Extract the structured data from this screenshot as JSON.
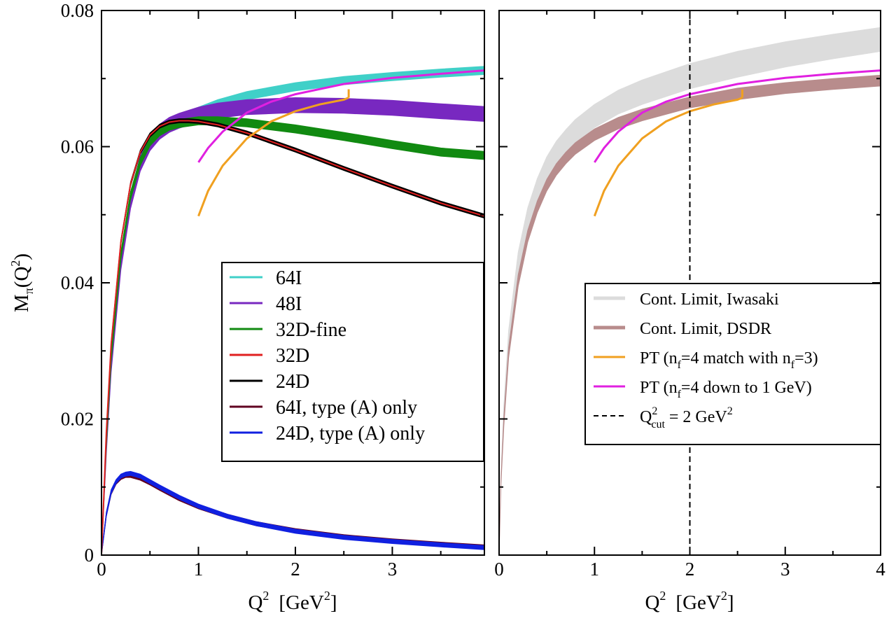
{
  "chart_data": [
    {
      "type": "line",
      "panel": "left",
      "xlabel": "Q",
      "xlabel_sup": "2",
      "xlabel_unit_main": "[GeV",
      "xlabel_unit_sup": "2",
      "xlabel_unit_end": "]",
      "ylabel_main": "M",
      "ylabel_sub": "π",
      "ylabel_arg": "(Q",
      "ylabel_arg_sup": "2",
      "ylabel_arg_end": ")",
      "xlim": [
        0,
        3.95
      ],
      "ylim": [
        0,
        0.08
      ],
      "x_ticks": [
        0,
        1,
        2,
        3
      ],
      "x_tick_labels": [
        "0",
        "1",
        "2",
        "3"
      ],
      "y_ticks": [
        0,
        0.02,
        0.04,
        0.06,
        0.08
      ],
      "y_tick_labels": [
        "0",
        "0.02",
        "0.04",
        "0.06",
        "0.08"
      ],
      "legend_position": "center-right",
      "series": [
        {
          "name": "64I",
          "color": "#40d0c8",
          "band": true,
          "x": [
            0,
            0.05,
            0.1,
            0.2,
            0.3,
            0.4,
            0.5,
            0.6,
            0.7,
            0.8,
            1.0,
            1.2,
            1.5,
            2.0,
            2.5,
            3.0,
            3.5,
            3.95
          ],
          "y": [
            0,
            0.016,
            0.028,
            0.043,
            0.052,
            0.0575,
            0.0605,
            0.0622,
            0.0632,
            0.0638,
            0.0652,
            0.0663,
            0.0675,
            0.0688,
            0.0697,
            0.0703,
            0.0708,
            0.0712
          ],
          "width": 0.0012
        },
        {
          "name": "48I",
          "color": "#7828c0",
          "band": true,
          "x": [
            0,
            0.05,
            0.1,
            0.2,
            0.3,
            0.4,
            0.5,
            0.6,
            0.7,
            0.8,
            1.0,
            1.2,
            1.5,
            2.0,
            2.5,
            3.0,
            3.5,
            3.95
          ],
          "y": [
            0,
            0.016,
            0.028,
            0.043,
            0.052,
            0.0575,
            0.0605,
            0.0622,
            0.0632,
            0.0638,
            0.0647,
            0.0653,
            0.0658,
            0.0661,
            0.066,
            0.0657,
            0.0652,
            0.0648
          ],
          "width": 0.0022
        },
        {
          "name": "32D-fine",
          "color": "#118a11",
          "band": true,
          "x": [
            0,
            0.05,
            0.1,
            0.2,
            0.3,
            0.4,
            0.5,
            0.6,
            0.7,
            0.8,
            1.0,
            1.2,
            1.5,
            2.0,
            2.5,
            3.0,
            3.5,
            3.95
          ],
          "y": [
            0,
            0.0165,
            0.029,
            0.044,
            0.0528,
            0.0578,
            0.0607,
            0.0622,
            0.063,
            0.0634,
            0.0638,
            0.0638,
            0.0635,
            0.0626,
            0.0615,
            0.0603,
            0.0592,
            0.0587
          ],
          "width": 0.0012
        },
        {
          "name": "32D",
          "color": "#e02020",
          "band": false,
          "x": [
            0,
            0.05,
            0.1,
            0.2,
            0.3,
            0.4,
            0.5,
            0.6,
            0.7,
            0.8,
            0.9,
            1.0,
            1.2,
            1.5,
            2.0,
            2.5,
            3.0,
            3.5,
            3.95
          ],
          "y": [
            0,
            0.018,
            0.031,
            0.046,
            0.0545,
            0.0592,
            0.0617,
            0.063,
            0.0636,
            0.0638,
            0.0638,
            0.0637,
            0.0632,
            0.062,
            0.0595,
            0.0568,
            0.0542,
            0.0517,
            0.0498
          ]
        },
        {
          "name": "24D",
          "color": "#000000",
          "band": true,
          "x": [
            0,
            0.05,
            0.1,
            0.2,
            0.3,
            0.4,
            0.5,
            0.6,
            0.7,
            0.8,
            0.9,
            1.0,
            1.2,
            1.5,
            2.0,
            2.5,
            3.0,
            3.5,
            3.95
          ],
          "y": [
            0,
            0.018,
            0.031,
            0.046,
            0.0545,
            0.0592,
            0.0617,
            0.063,
            0.0636,
            0.0638,
            0.0638,
            0.0637,
            0.0632,
            0.062,
            0.0595,
            0.0568,
            0.0542,
            0.0517,
            0.0498
          ],
          "width": 0.0006
        },
        {
          "name": "64I, type (A) only",
          "color": "#600020",
          "band": true,
          "x": [
            0,
            0.05,
            0.1,
            0.15,
            0.2,
            0.25,
            0.3,
            0.4,
            0.5,
            0.6,
            0.8,
            1.0,
            1.3,
            1.6,
            2.0,
            2.5,
            3.0,
            3.5,
            3.95
          ],
          "y": [
            0,
            0.006,
            0.0092,
            0.0107,
            0.0114,
            0.0117,
            0.0117,
            0.0113,
            0.0106,
            0.0098,
            0.0083,
            0.0071,
            0.0057,
            0.0046,
            0.0036,
            0.0027,
            0.0021,
            0.0016,
            0.0012
          ],
          "width": 0.0006
        },
        {
          "name": "24D, type (A) only",
          "color": "#1020e0",
          "band": true,
          "x": [
            0,
            0.05,
            0.1,
            0.15,
            0.2,
            0.25,
            0.3,
            0.4,
            0.5,
            0.6,
            0.8,
            1.0,
            1.3,
            1.6,
            2.0,
            2.5,
            3.0,
            3.5,
            3.95
          ],
          "y": [
            0,
            0.006,
            0.0093,
            0.0108,
            0.0116,
            0.0119,
            0.012,
            0.0116,
            0.0108,
            0.01,
            0.0085,
            0.0072,
            0.0057,
            0.0046,
            0.0035,
            0.0026,
            0.002,
            0.0015,
            0.0011
          ],
          "width": 0.0006
        }
      ],
      "overlays": [
        {
          "color": "#f0a020",
          "x": [
            1.0,
            1.1,
            1.25,
            1.5,
            1.75,
            2.0,
            2.25,
            2.5,
            2.55
          ],
          "y": [
            0.0498,
            0.0535,
            0.0572,
            0.0612,
            0.0637,
            0.0652,
            0.0662,
            0.0669,
            0.0672
          ],
          "tick_at": 2.55
        },
        {
          "color": "#e020e0",
          "x": [
            1.0,
            1.1,
            1.25,
            1.5,
            1.75,
            2.0,
            2.5,
            3.0,
            3.5,
            3.95
          ],
          "y": [
            0.0577,
            0.0598,
            0.0622,
            0.065,
            0.0666,
            0.0677,
            0.0692,
            0.0701,
            0.0707,
            0.0712
          ]
        }
      ]
    },
    {
      "type": "line",
      "panel": "right",
      "xlabel": "Q",
      "xlabel_sup": "2",
      "xlabel_unit_main": "[GeV",
      "xlabel_unit_sup": "2",
      "xlabel_unit_end": "]",
      "xlim": [
        0,
        4
      ],
      "ylim": [
        0,
        0.08
      ],
      "x_ticks": [
        0,
        1,
        2,
        3,
        4
      ],
      "x_tick_labels": [
        "0",
        "1",
        "2",
        "3",
        "4"
      ],
      "legend_position": "center-right",
      "vline": {
        "x": 2,
        "style": "dashed",
        "color": "#000000"
      },
      "series": [
        {
          "name": "Cont. Limit, Iwasaki",
          "color": "#dcdcdc",
          "band": true,
          "x": [
            0,
            0.02,
            0.05,
            0.1,
            0.2,
            0.3,
            0.4,
            0.5,
            0.6,
            0.7,
            0.8,
            1.0,
            1.25,
            1.5,
            2.0,
            2.5,
            3.0,
            3.5,
            4.0
          ],
          "y_low": [
            0,
            0.011,
            0.02,
            0.03,
            0.041,
            0.0475,
            0.0518,
            0.055,
            0.0573,
            0.059,
            0.0605,
            0.0628,
            0.0648,
            0.0662,
            0.0685,
            0.0702,
            0.0717,
            0.0729,
            0.074
          ],
          "y_high": [
            0,
            0.012,
            0.022,
            0.033,
            0.0445,
            0.051,
            0.0553,
            0.0585,
            0.0608,
            0.0625,
            0.064,
            0.0662,
            0.0683,
            0.0698,
            0.0722,
            0.074,
            0.0754,
            0.0765,
            0.0775
          ]
        },
        {
          "name": "Cont. Limit, DSDR",
          "color": "#b88c8c",
          "band": true,
          "x": [
            0,
            0.02,
            0.05,
            0.1,
            0.2,
            0.3,
            0.4,
            0.5,
            0.6,
            0.7,
            0.8,
            1.0,
            1.25,
            1.5,
            2.0,
            2.5,
            3.0,
            3.5,
            4.0
          ],
          "y_low": [
            0,
            0.0105,
            0.019,
            0.029,
            0.0395,
            0.046,
            0.0503,
            0.0535,
            0.0558,
            0.0575,
            0.0589,
            0.0609,
            0.0626,
            0.0638,
            0.0657,
            0.0669,
            0.0678,
            0.0684,
            0.0689
          ],
          "y_high": [
            0,
            0.0112,
            0.0203,
            0.0305,
            0.0412,
            0.0477,
            0.052,
            0.0552,
            0.0575,
            0.0592,
            0.0606,
            0.0626,
            0.0643,
            0.0655,
            0.0673,
            0.0686,
            0.0694,
            0.07,
            0.0705
          ]
        },
        {
          "name": "PT (n",
          "name_sub": "f",
          "name_mid": "=4 match with n",
          "name_sub2": "f",
          "name_end": "=3)",
          "color": "#f0a020",
          "band": false,
          "x": [
            1.0,
            1.1,
            1.25,
            1.5,
            1.75,
            2.0,
            2.25,
            2.5,
            2.55
          ],
          "y": [
            0.0498,
            0.0535,
            0.0572,
            0.0612,
            0.0637,
            0.0652,
            0.0662,
            0.0669,
            0.0672
          ],
          "tick_at": 2.55
        },
        {
          "name": "PT (n",
          "name_sub": "f",
          "name_mid": "=4 down to 1 GeV)",
          "color": "#e020e0",
          "band": false,
          "x": [
            1.0,
            1.1,
            1.25,
            1.5,
            1.75,
            2.0,
            2.5,
            3.0,
            3.5,
            4.0
          ],
          "y": [
            0.0577,
            0.0598,
            0.0622,
            0.065,
            0.0666,
            0.0677,
            0.0692,
            0.0701,
            0.0707,
            0.0712
          ]
        },
        {
          "name": "Q",
          "name_sup": "2",
          "name_sub": "cut",
          "name_end": " = 2 GeV",
          "name_end_sup": "2",
          "color": "#000000",
          "dashed": true
        }
      ]
    }
  ]
}
